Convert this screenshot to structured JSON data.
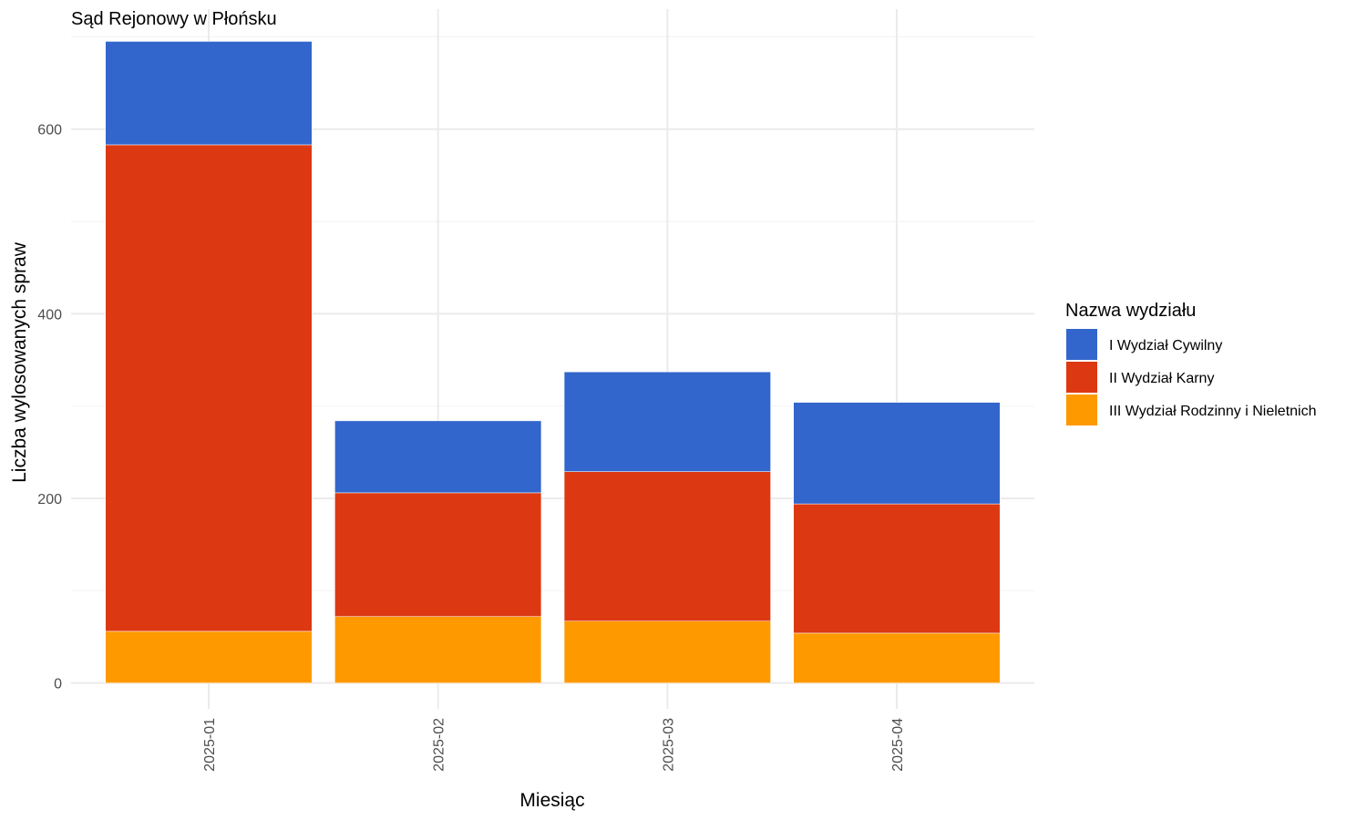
{
  "chart_data": {
    "type": "bar",
    "stacked": true,
    "title": "Sąd Rejonowy w Płońsku",
    "xlabel": "Miesiąc",
    "ylabel": "Liczba wylosowanych spraw",
    "categories": [
      "2025-01",
      "2025-02",
      "2025-03",
      "2025-04"
    ],
    "series": [
      {
        "name": "III Wydział Rodzinny i Nieletnich",
        "color": "#ff9900",
        "values": [
          56,
          72,
          67,
          54
        ]
      },
      {
        "name": "II Wydział Karny",
        "color": "#dc3912",
        "values": [
          527,
          134,
          162,
          140
        ]
      },
      {
        "name": "I Wydział Cywilny",
        "color": "#3366cc",
        "values": [
          112,
          78,
          108,
          110
        ]
      }
    ],
    "ylim": [
      -28,
      730
    ],
    "yticks": [
      0,
      200,
      400,
      600
    ],
    "grid": true,
    "legend": {
      "title": "Nazwa wydziału",
      "position": "right",
      "order": [
        "I Wydział Cywilny",
        "II Wydział Karny",
        "III Wydział Rodzinny i Nieletnich"
      ]
    }
  }
}
